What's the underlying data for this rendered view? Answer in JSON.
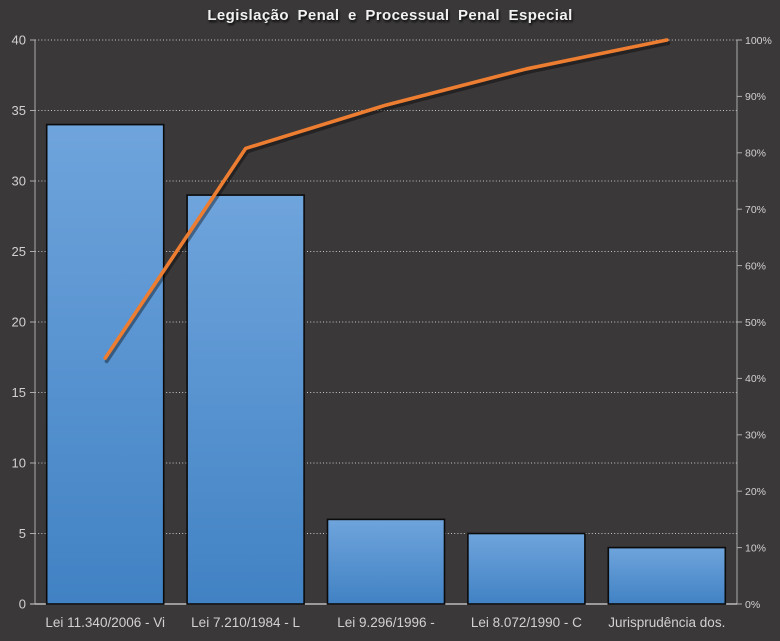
{
  "title": "Legislação Penal e Processual Penal Especial",
  "chart_data": {
    "type": "bar",
    "subtype": "pareto-combo-bar-line",
    "title": "Legislação Penal e Processual Penal Especial",
    "categories": [
      "Lei 11.340/2006 - Vi",
      "Lei 7.210/1984 - L",
      "Lei 9.296/1996 -",
      "Lei 8.072/1990 - C",
      "Jurisprudência dos."
    ],
    "series": [
      {
        "name": "bars",
        "type": "bar",
        "axis": "left",
        "values": [
          34,
          29,
          6,
          5,
          4
        ]
      },
      {
        "name": "cumulative-line",
        "type": "line",
        "axis": "right",
        "values_percent": [
          43.59,
          80.77,
          88.46,
          94.87,
          100
        ]
      }
    ],
    "left_axis": {
      "min": 0,
      "max": 40,
      "step": 5,
      "tick_labels": [
        "0",
        "5",
        "10",
        "15",
        "20",
        "25",
        "30",
        "35",
        "40"
      ]
    },
    "right_axis": {
      "min": 0,
      "max": 100,
      "step": 10,
      "tick_labels": [
        "0%",
        "10%",
        "20%",
        "30%",
        "40%",
        "50%",
        "60%",
        "70%",
        "80%",
        "90%",
        "100%"
      ]
    },
    "grid": {
      "horizontal": true,
      "style": "dotted"
    },
    "legend": "none",
    "colors": {
      "background": "#3A3838",
      "bar_fill_top": "#6FA4DC",
      "bar_fill_bottom": "#4182C4",
      "bar_border": "#0B0B0B",
      "line": "#ED7D31",
      "line_shadow": "rgba(0,0,0,0.38)",
      "gridline": "#C9C7C7",
      "axis_line": "#ABABAB",
      "baseline": "#D6D4D4",
      "tick_label": "#D2D0D0",
      "title_color": "#F2F2F2"
    }
  }
}
